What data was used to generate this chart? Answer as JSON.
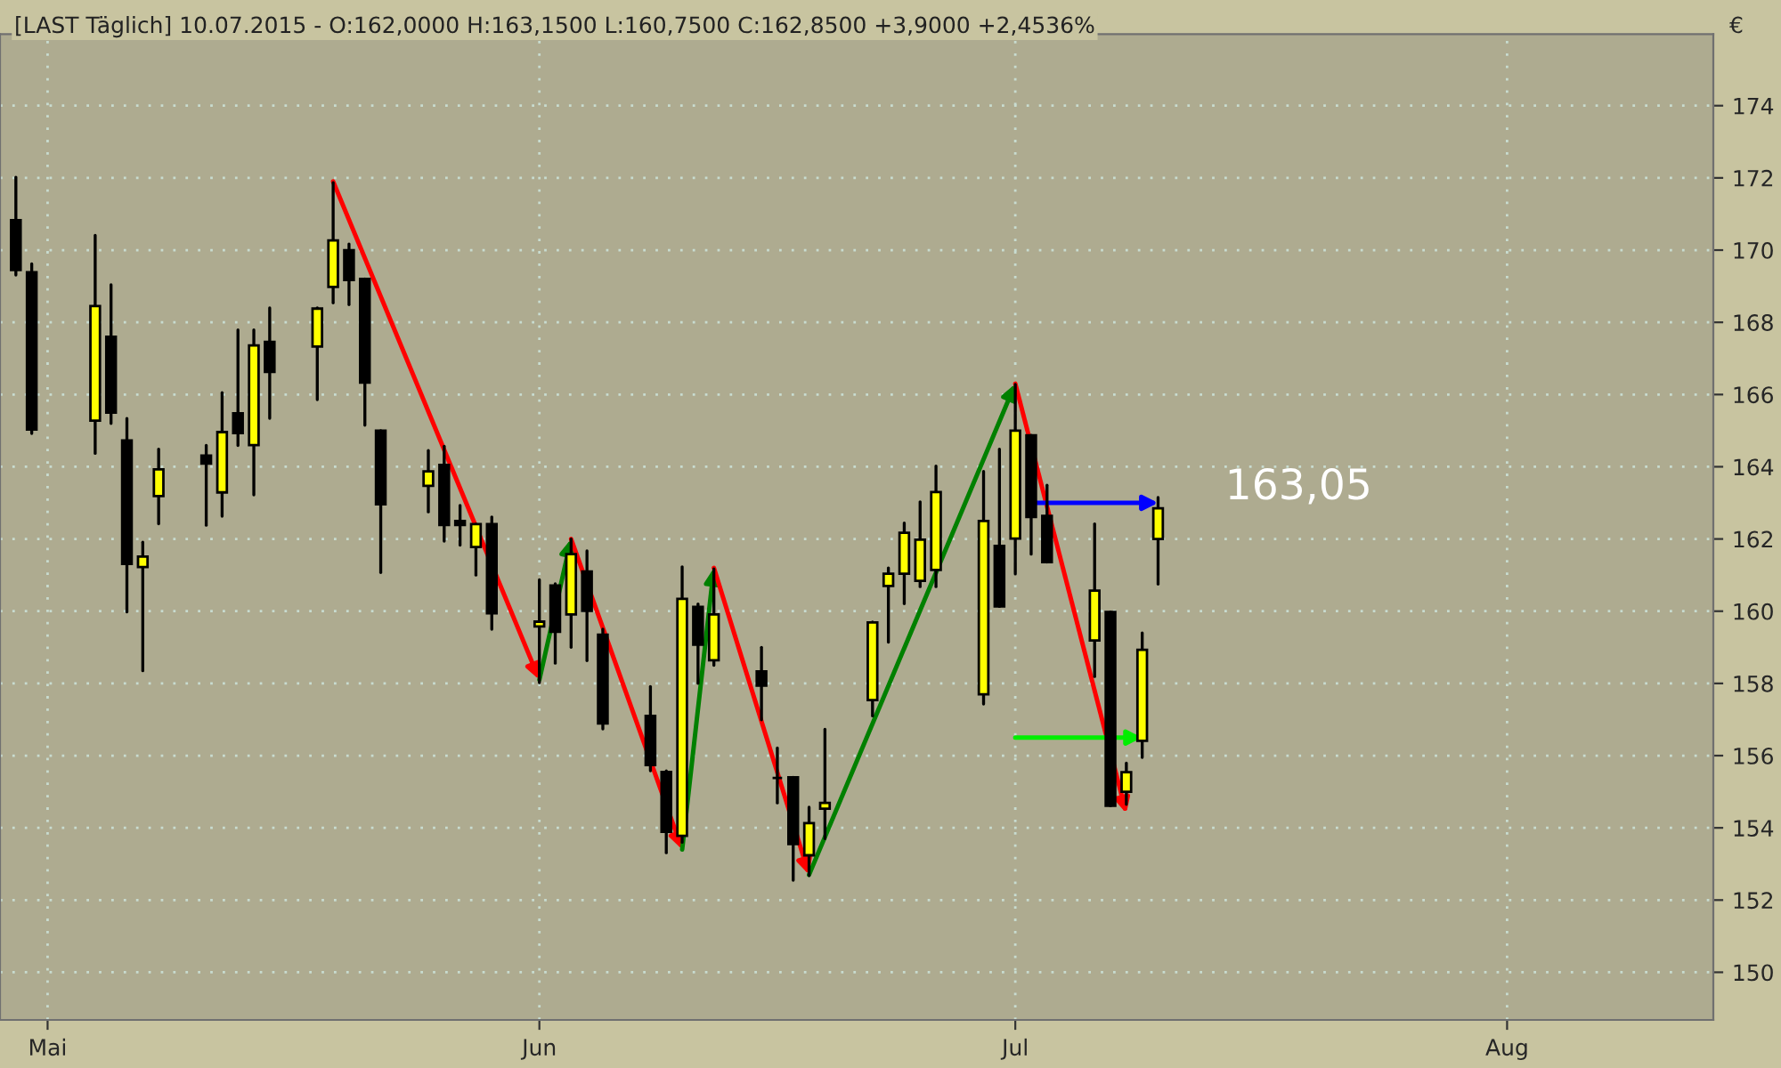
{
  "chart_data": {
    "type": "candlestick",
    "title": "[LAST Täglich] 10.07.2015 - O:162,0000 H:163,1500 L:160,7500 C:162,8500 +3,9000 +2,4536%",
    "ylabel": "€",
    "x": [
      "2015-04-29",
      "2015-04-30",
      "2015-05-04",
      "2015-05-05",
      "2015-05-06",
      "2015-05-07",
      "2015-05-08",
      "2015-05-11",
      "2015-05-12",
      "2015-05-13",
      "2015-05-14",
      "2015-05-15",
      "2015-05-18",
      "2015-05-19",
      "2015-05-20",
      "2015-05-21",
      "2015-05-22",
      "2015-05-25",
      "2015-05-26",
      "2015-05-27",
      "2015-05-28",
      "2015-05-29",
      "2015-06-01",
      "2015-06-02",
      "2015-06-03",
      "2015-06-04",
      "2015-06-05",
      "2015-06-08",
      "2015-06-09",
      "2015-06-10",
      "2015-06-11",
      "2015-06-12",
      "2015-06-15",
      "2015-06-16",
      "2015-06-17",
      "2015-06-18",
      "2015-06-19",
      "2015-06-22",
      "2015-06-23",
      "2015-06-24",
      "2015-06-25",
      "2015-06-26",
      "2015-06-29",
      "2015-06-30",
      "2015-07-01",
      "2015-07-02",
      "2015-07-03",
      "2015-07-06",
      "2015-07-07",
      "2015-07-08",
      "2015-07-09",
      "2015-07-10"
    ],
    "xlim": [
      "2015-04-28",
      "2015-08-14"
    ],
    "xticks": [
      {
        "value": "2015-05-01",
        "label": "Mai"
      },
      {
        "value": "2015-06-01",
        "label": "Jun"
      },
      {
        "value": "2015-07-01",
        "label": "Jul"
      },
      {
        "value": "2015-08-01",
        "label": "Aug"
      }
    ],
    "ohlc": [
      [
        170.83,
        172.02,
        169.31,
        169.45
      ],
      [
        169.39,
        169.62,
        164.92,
        165.03
      ],
      [
        165.28,
        170.41,
        164.37,
        168.45
      ],
      [
        167.6,
        169.04,
        165.2,
        165.5
      ],
      [
        164.73,
        165.34,
        159.98,
        161.31
      ],
      [
        161.22,
        161.91,
        158.35,
        161.51
      ],
      [
        163.19,
        164.49,
        162.42,
        163.93
      ],
      [
        164.31,
        164.59,
        162.38,
        164.09
      ],
      [
        163.29,
        166.05,
        162.63,
        164.96
      ],
      [
        165.48,
        167.79,
        164.59,
        164.93
      ],
      [
        164.6,
        167.79,
        163.22,
        167.36
      ],
      [
        167.46,
        168.4,
        165.34,
        166.63
      ],
      [
        167.33,
        168.4,
        165.86,
        168.38
      ],
      [
        168.98,
        171.87,
        168.54,
        170.27
      ],
      [
        170.0,
        170.17,
        168.49,
        169.17
      ],
      [
        169.2,
        169.2,
        165.15,
        166.33
      ],
      [
        165.0,
        165.0,
        161.07,
        162.96
      ],
      [
        163.47,
        164.45,
        162.75,
        163.87
      ],
      [
        164.05,
        164.57,
        161.94,
        162.39
      ],
      [
        162.5,
        162.93,
        161.83,
        162.39
      ],
      [
        161.78,
        162.41,
        161.0,
        162.41
      ],
      [
        162.41,
        162.61,
        159.5,
        159.94
      ],
      [
        159.58,
        160.87,
        158.02,
        159.71
      ],
      [
        160.71,
        160.76,
        158.56,
        159.43
      ],
      [
        159.91,
        162.0,
        159.0,
        161.58
      ],
      [
        161.1,
        161.67,
        158.63,
        160.01
      ],
      [
        159.35,
        159.5,
        156.74,
        156.89
      ],
      [
        157.1,
        157.91,
        155.58,
        155.74
      ],
      [
        155.55,
        155.58,
        153.31,
        153.89
      ],
      [
        153.78,
        161.23,
        153.6,
        160.34
      ],
      [
        160.12,
        160.2,
        158.0,
        159.07
      ],
      [
        158.64,
        161.17,
        158.5,
        159.91
      ],
      [
        158.33,
        159.0,
        156.99,
        157.94
      ],
      [
        155.38,
        156.21,
        154.69,
        155.38
      ],
      [
        155.4,
        155.4,
        152.55,
        153.55
      ],
      [
        153.24,
        154.57,
        152.68,
        154.13
      ],
      [
        154.53,
        156.73,
        153.7,
        154.69
      ],
      [
        157.54,
        159.7,
        157.1,
        159.69
      ],
      [
        160.7,
        161.2,
        159.14,
        161.04
      ],
      [
        161.04,
        162.44,
        160.21,
        162.17
      ],
      [
        160.84,
        163.03,
        160.68,
        161.98
      ],
      [
        161.14,
        164.02,
        160.68,
        163.3
      ],
      [
        157.7,
        163.87,
        157.43,
        162.5
      ],
      [
        161.81,
        164.49,
        160.13,
        160.13
      ],
      [
        162.01,
        166.28,
        161.03,
        165.0
      ],
      [
        164.87,
        164.87,
        161.58,
        162.61
      ],
      [
        162.64,
        163.49,
        161.36,
        161.36
      ],
      [
        159.19,
        162.42,
        158.19,
        160.57
      ],
      [
        159.98,
        159.98,
        154.61,
        154.61
      ],
      [
        155.0,
        155.79,
        154.65,
        155.54
      ],
      [
        156.41,
        159.4,
        155.95,
        158.93
      ],
      [
        162.0,
        163.15,
        160.75,
        162.85
      ]
    ],
    "ylim": [
      148.68,
      175.98
    ],
    "yticks": [
      150,
      152,
      154,
      156,
      158,
      160,
      162,
      164,
      166,
      168,
      170,
      172,
      174
    ],
    "grid": true,
    "annotations": [
      "163,05"
    ]
  }
}
